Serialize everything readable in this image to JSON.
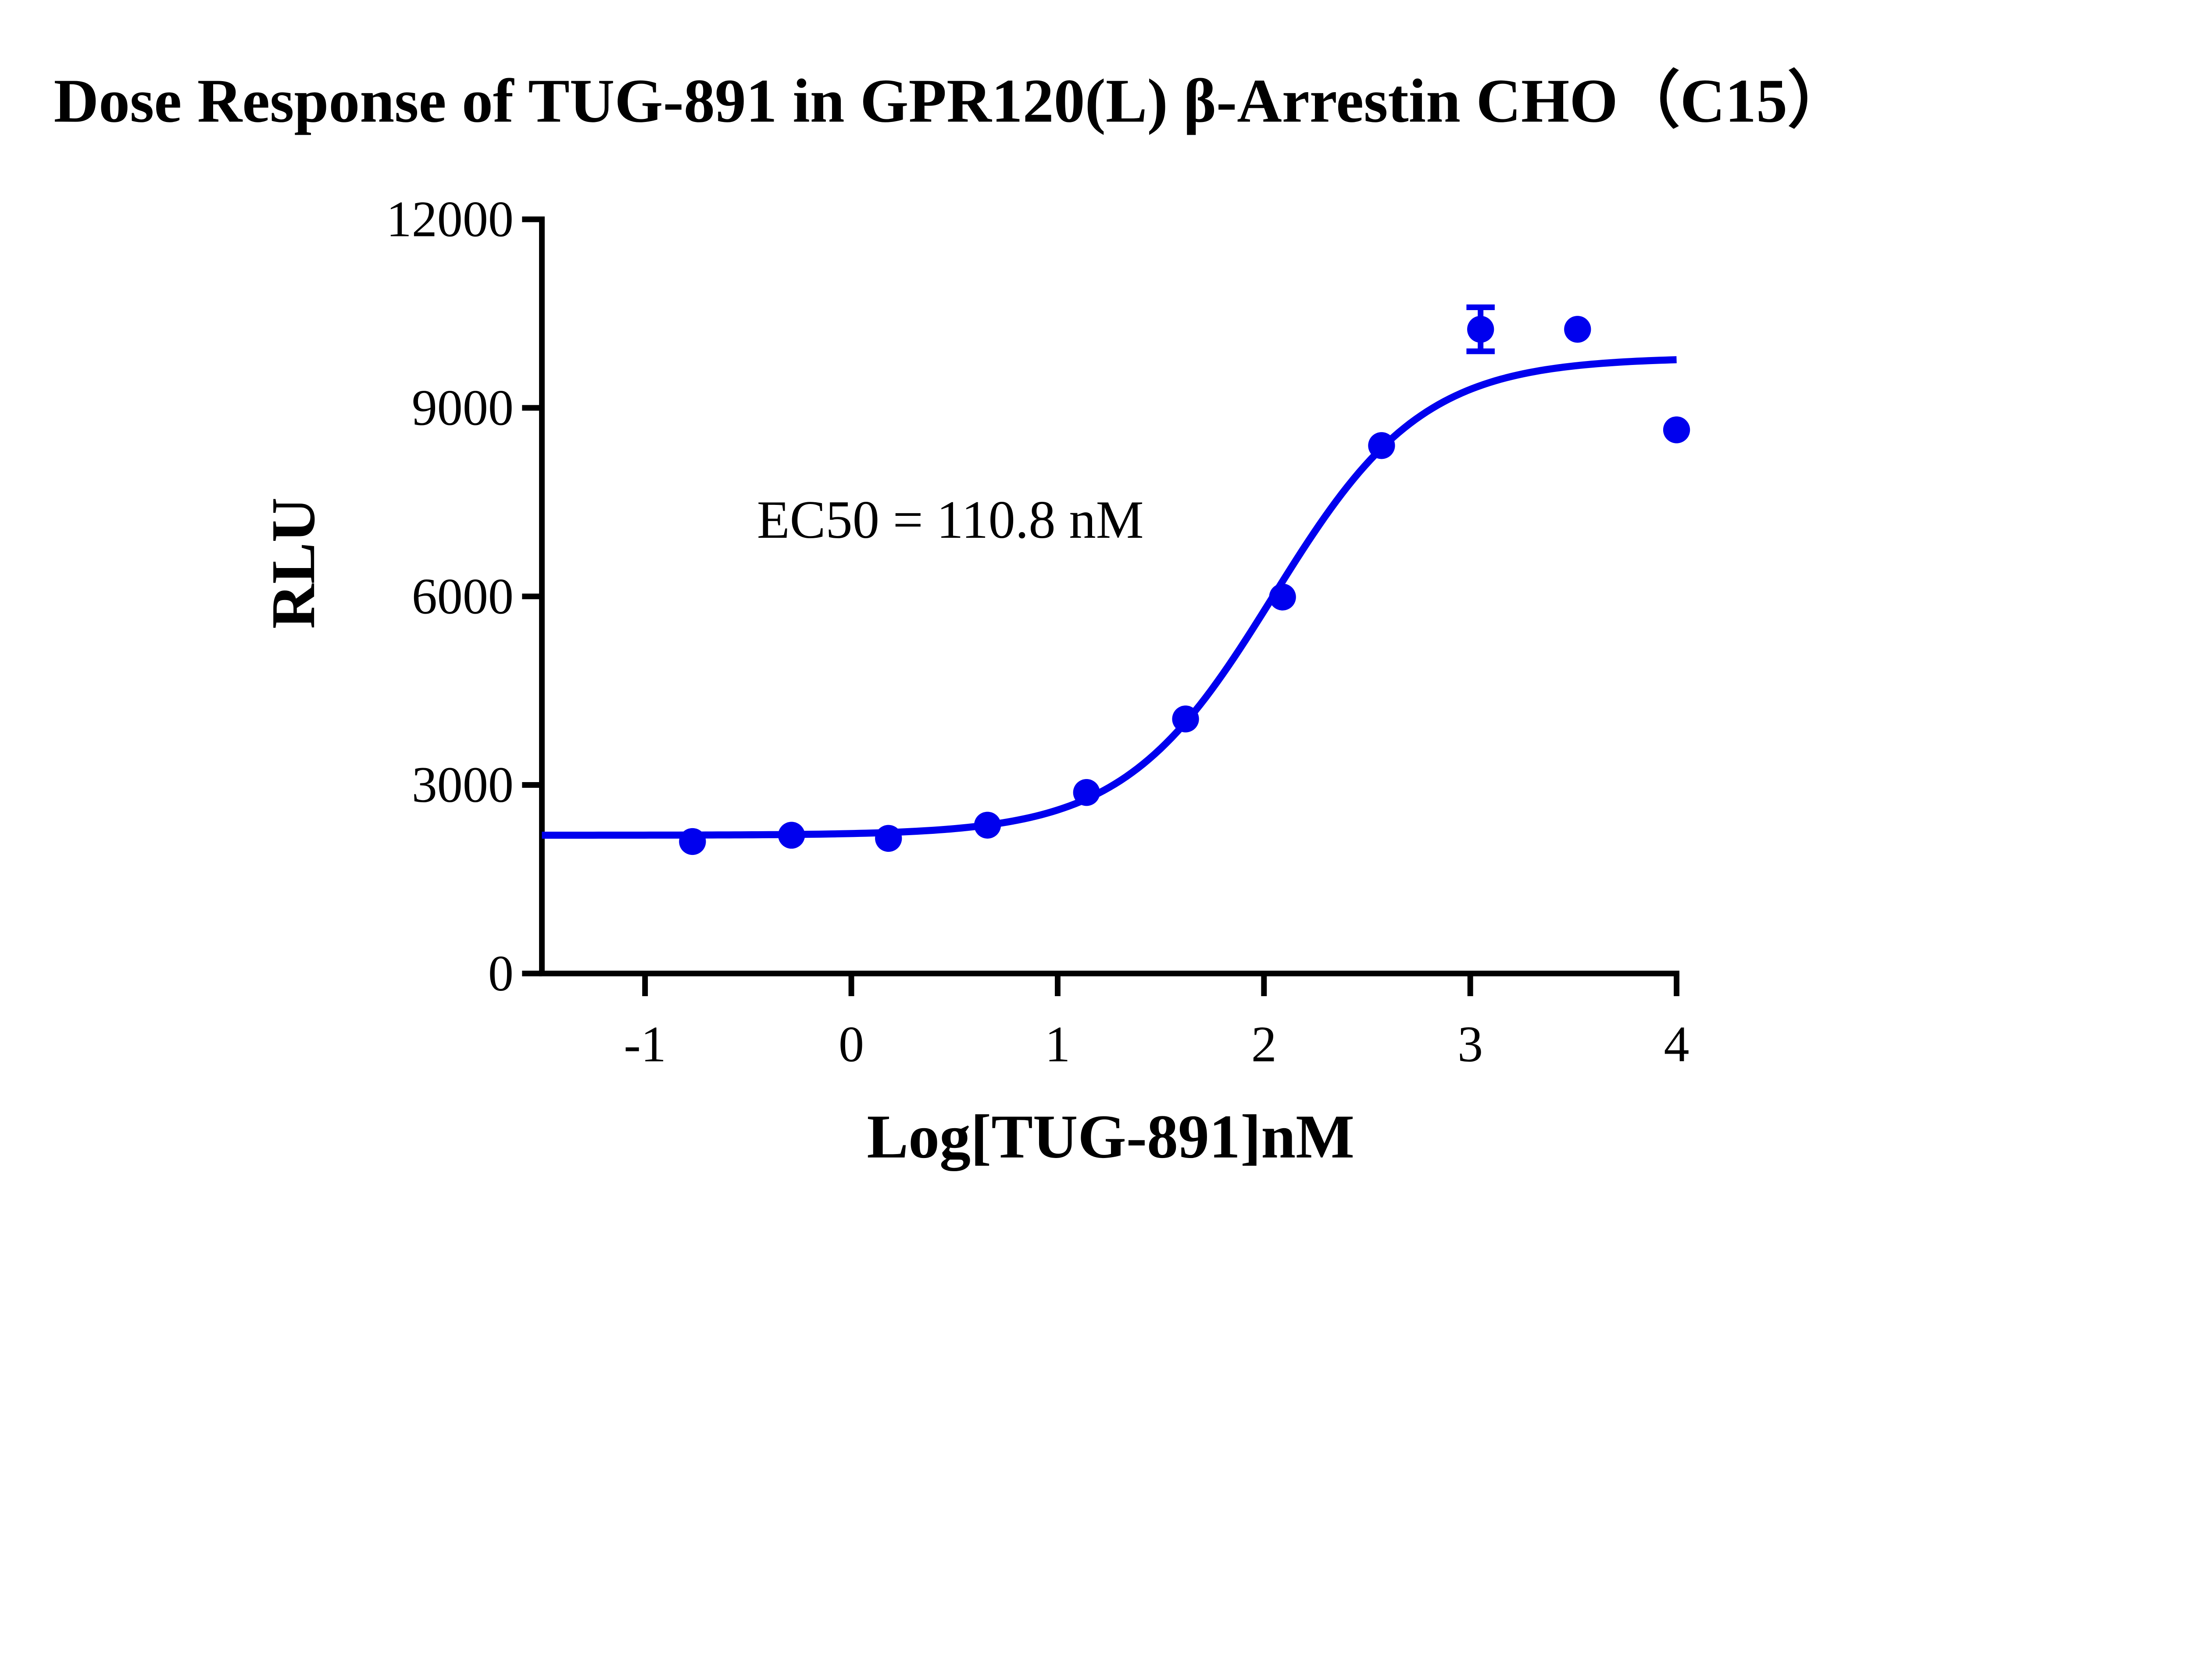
{
  "chart_data": {
    "type": "scatter",
    "title": "Dose Response of TUG-891 in GPR120(L) β-Arrestin CHO（C15）",
    "xlabel": "Log[TUG-891]nM",
    "ylabel": "RLU",
    "xlim": [
      -1.5,
      4
    ],
    "ylim": [
      0,
      12000
    ],
    "xticks": [
      -1,
      0,
      1,
      2,
      3,
      4
    ],
    "yticks": [
      0,
      3000,
      6000,
      9000,
      12000
    ],
    "grid": false,
    "color": "#0000ee",
    "annotation": "EC50 = 110.8 nM",
    "series": [
      {
        "x": [
          -0.77,
          -0.29,
          0.18,
          0.66,
          1.14,
          1.62,
          2.09,
          2.57,
          3.05,
          3.52,
          4.0
        ],
        "y": [
          2100,
          2200,
          2150,
          2360,
          2880,
          4050,
          5990,
          8400,
          10250,
          10250,
          8650
        ],
        "yerr": [
          0,
          0,
          0,
          0,
          0,
          0,
          0,
          0,
          350,
          0,
          0
        ]
      }
    ],
    "fit": {
      "model": "four-parameter logistic",
      "bottom": 2200,
      "top": 9800,
      "logEC50": 2.0445,
      "hill": 1.2,
      "x_range": [
        -1.5,
        4
      ]
    }
  }
}
